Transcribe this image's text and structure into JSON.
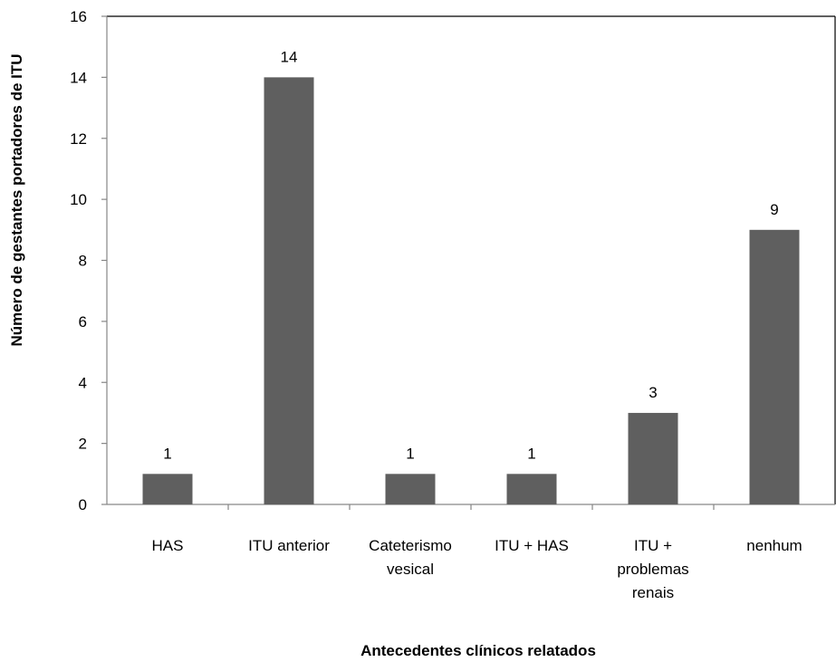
{
  "chart_data": {
    "type": "bar",
    "categories": [
      [
        "HAS"
      ],
      [
        "ITU anterior"
      ],
      [
        "Cateterismo",
        "vesical"
      ],
      [
        "ITU + HAS"
      ],
      [
        "ITU +",
        "problemas",
        "renais"
      ],
      [
        "nenhum"
      ]
    ],
    "values": [
      1,
      14,
      1,
      1,
      3,
      9
    ],
    "data_labels": [
      "1",
      "14",
      "1",
      "1",
      "3",
      "9"
    ],
    "title": "",
    "xlabel": "Antecedentes clínicos relatados",
    "ylabel": "Número de gestantes portadores de ITU",
    "ylim": [
      0,
      16
    ],
    "yticks": [
      "0",
      "2",
      "4",
      "6",
      "8",
      "10",
      "12",
      "14",
      "16"
    ],
    "grid": false,
    "legend": "none",
    "bar_color": "#5f5f5f",
    "axis_color": "#868686"
  }
}
